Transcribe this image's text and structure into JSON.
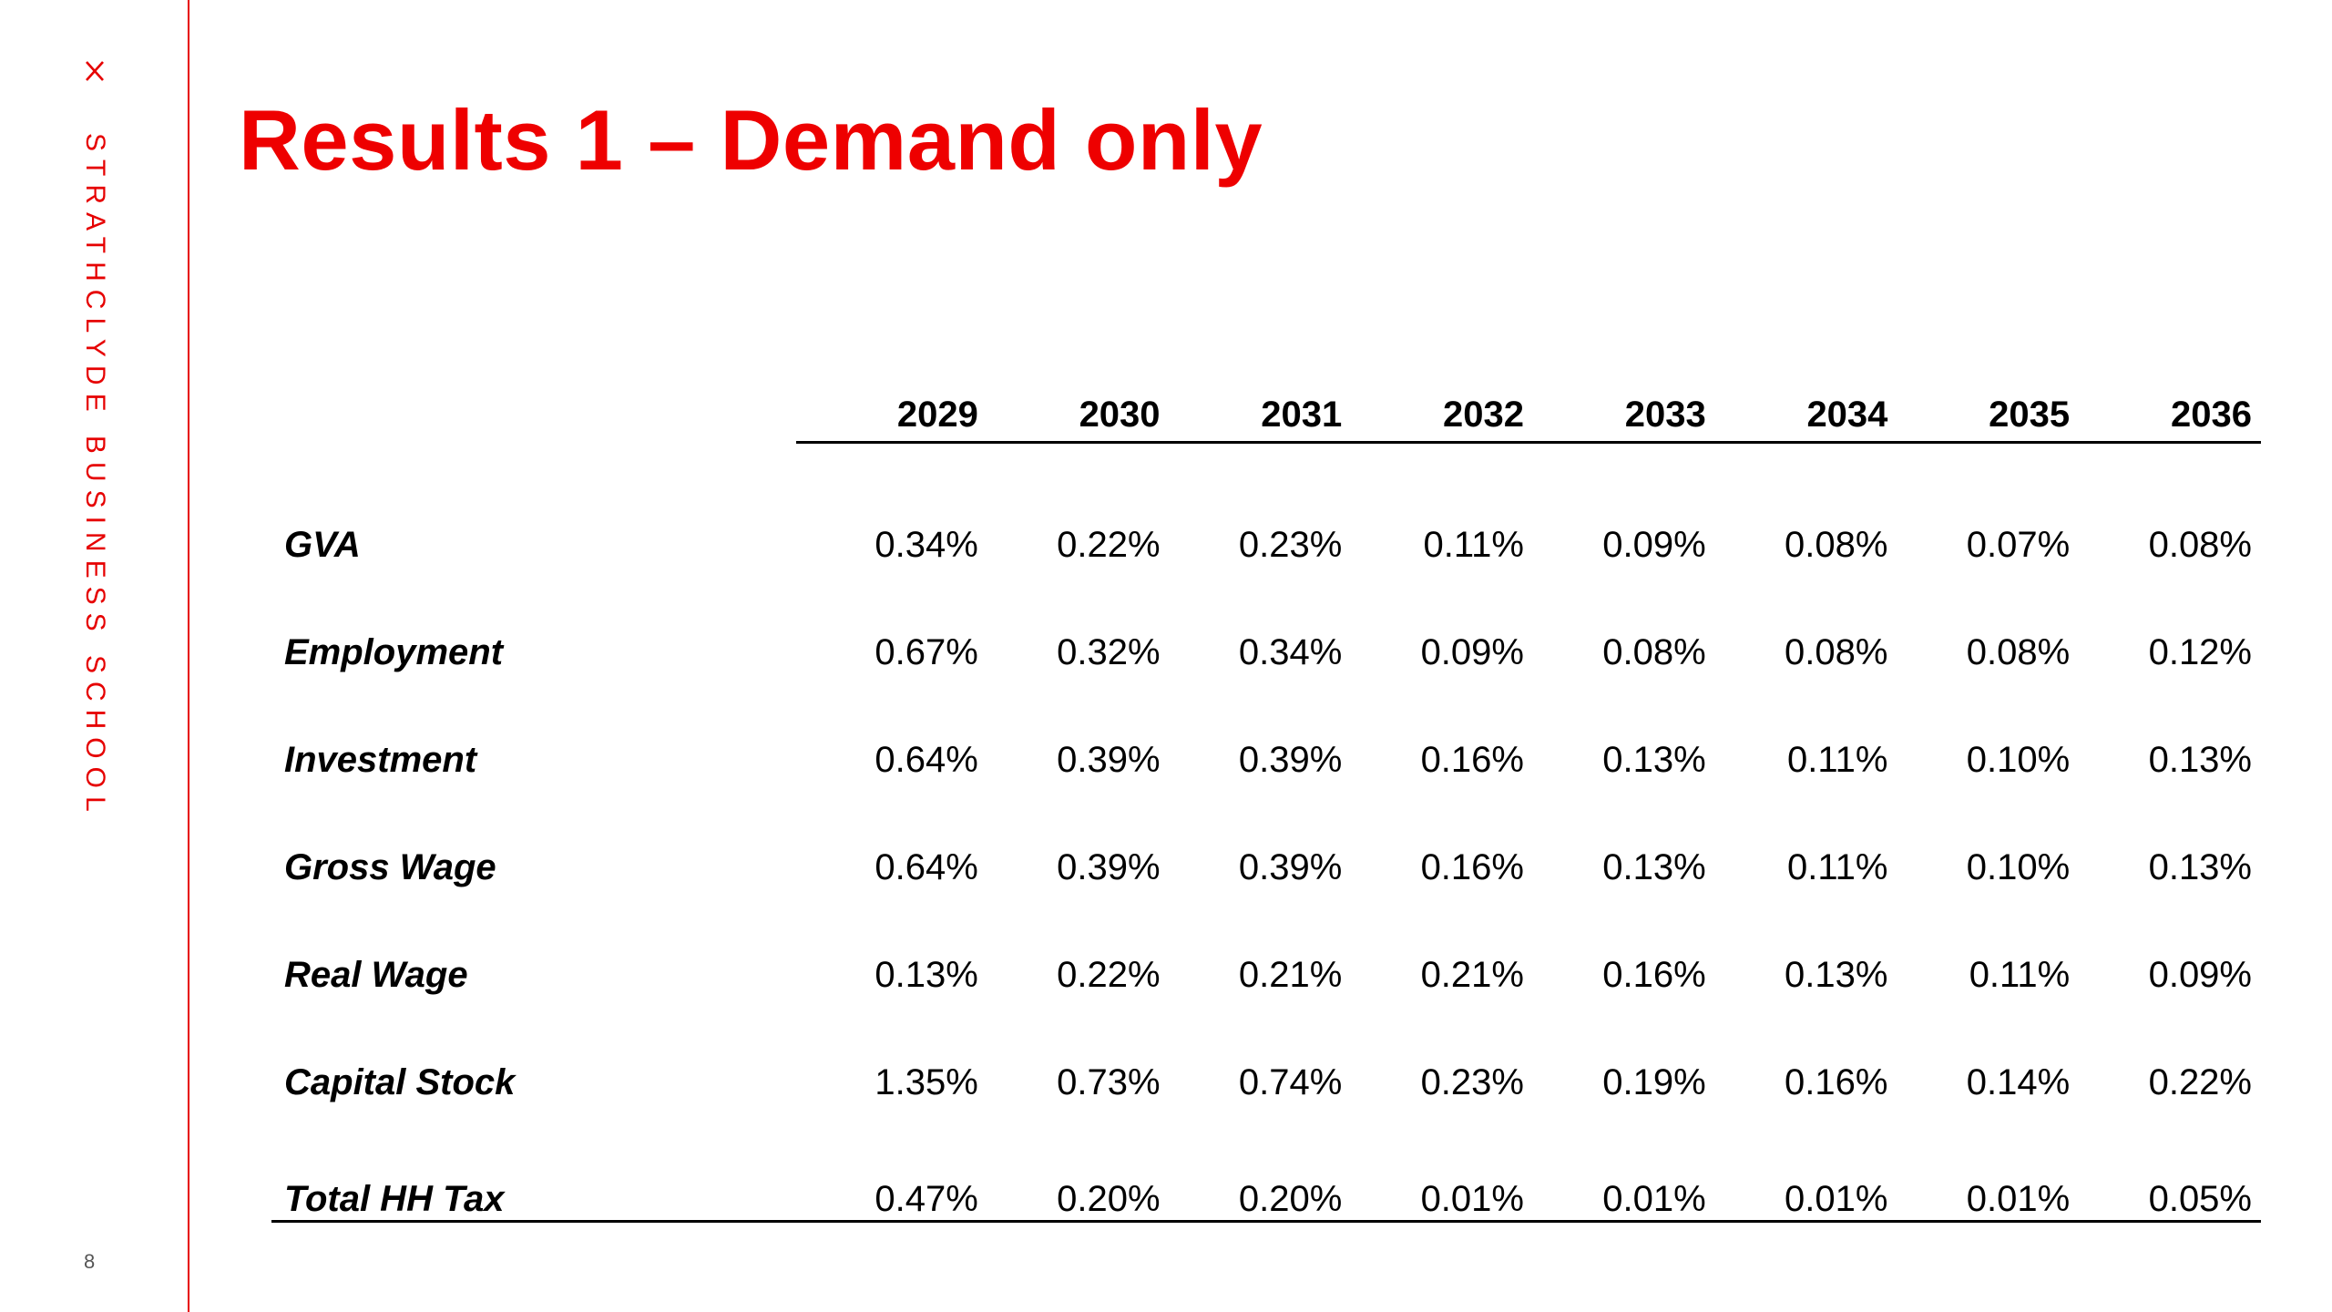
{
  "sidebar": {
    "logo_mark": "X",
    "logo_text": "STRATHCLYDE BUSINESS SCHOOL",
    "accent_color": "#e60000"
  },
  "slide": {
    "page_number": "8",
    "title": "Results 1 – Demand only",
    "title_color": "#ee0000"
  },
  "table": {
    "columns": [
      "2029",
      "2030",
      "2031",
      "2032",
      "2033",
      "2034",
      "2035",
      "2036"
    ],
    "rows": [
      {
        "label": "GVA",
        "values": [
          "0.34%",
          "0.22%",
          "0.23%",
          "0.11%",
          "0.09%",
          "0.08%",
          "0.07%",
          "0.08%"
        ]
      },
      {
        "label": "Employment",
        "values": [
          "0.67%",
          "0.32%",
          "0.34%",
          "0.09%",
          "0.08%",
          "0.08%",
          "0.08%",
          "0.12%"
        ]
      },
      {
        "label": "Investment",
        "values": [
          "0.64%",
          "0.39%",
          "0.39%",
          "0.16%",
          "0.13%",
          "0.11%",
          "0.10%",
          "0.13%"
        ]
      },
      {
        "label": "Gross Wage",
        "values": [
          "0.64%",
          "0.39%",
          "0.39%",
          "0.16%",
          "0.13%",
          "0.11%",
          "0.10%",
          "0.13%"
        ]
      },
      {
        "label": "Real Wage",
        "values": [
          "0.13%",
          "0.22%",
          "0.21%",
          "0.21%",
          "0.16%",
          "0.13%",
          "0.11%",
          "0.09%"
        ]
      },
      {
        "label": "Capital Stock",
        "values": [
          "1.35%",
          "0.73%",
          "0.74%",
          "0.23%",
          "0.19%",
          "0.16%",
          "0.14%",
          "0.22%"
        ]
      },
      {
        "label": "Total HH Tax",
        "values": [
          "0.47%",
          "0.20%",
          "0.20%",
          "0.01%",
          "0.01%",
          "0.01%",
          "0.01%",
          "0.05%"
        ]
      }
    ]
  }
}
